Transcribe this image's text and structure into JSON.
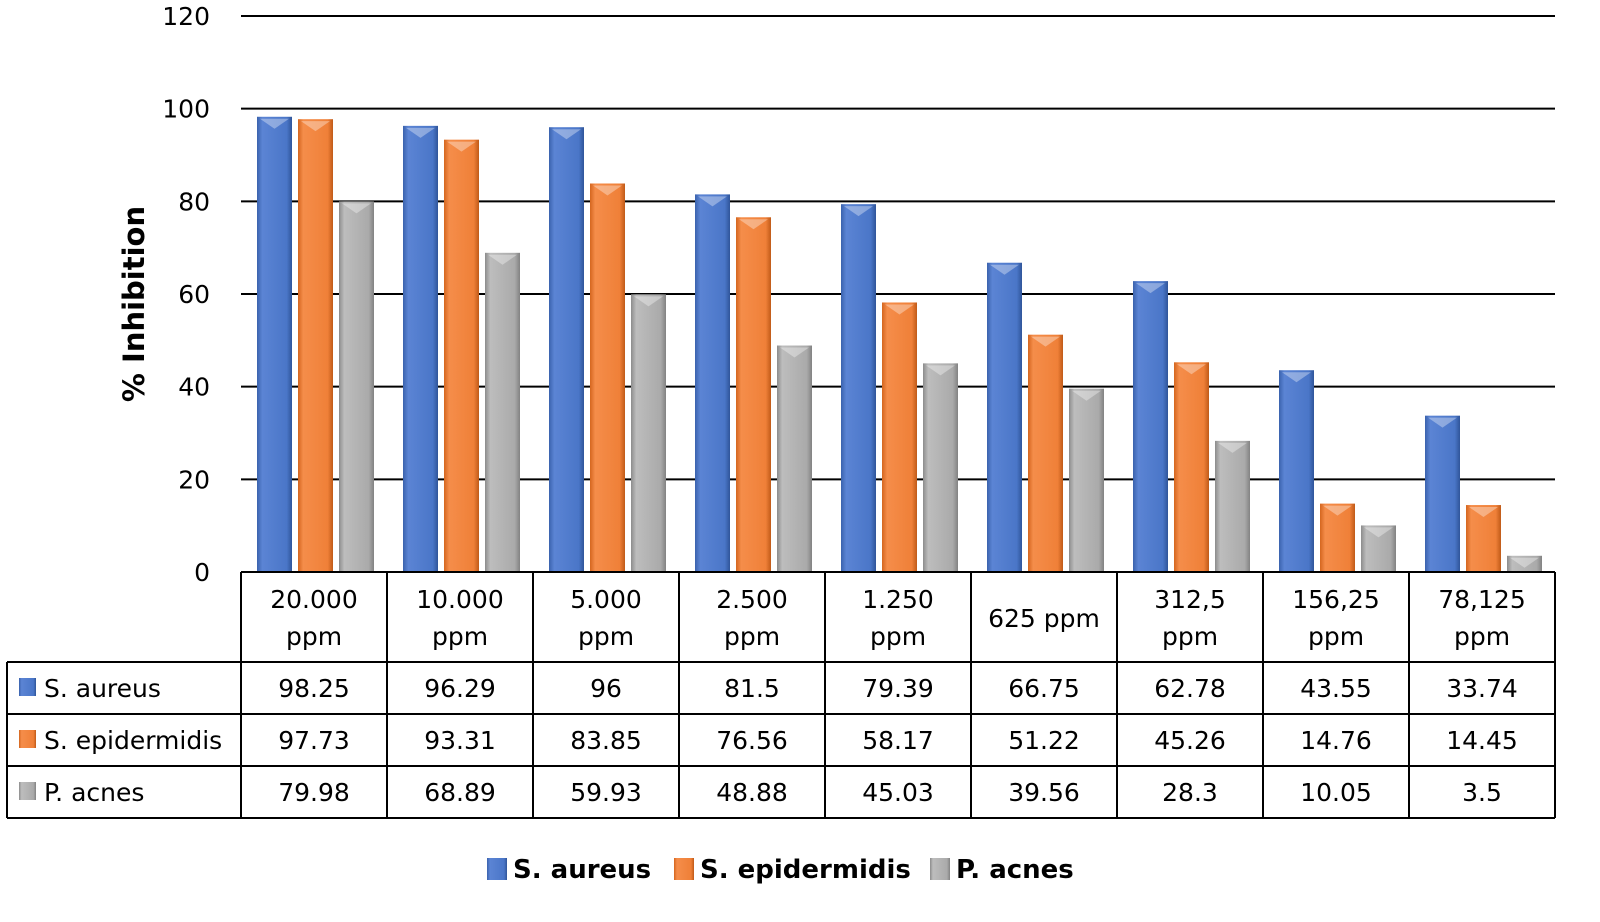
{
  "chart_data": {
    "type": "bar",
    "title": "",
    "xlabel": "",
    "ylabel": "% Inhibition",
    "ylim": [
      0,
      120
    ],
    "yticks": [
      0,
      20,
      40,
      60,
      80,
      100,
      120
    ],
    "grid": true,
    "legend_position": "bottom",
    "data_table": true,
    "categories": [
      [
        "20.000",
        "ppm"
      ],
      [
        "10.000",
        "ppm"
      ],
      [
        "5.000",
        "ppm"
      ],
      [
        "2.500",
        "ppm"
      ],
      [
        "1.250",
        "ppm"
      ],
      [
        "625 ppm"
      ],
      [
        "312,5",
        "ppm"
      ],
      [
        "156,25",
        "ppm"
      ],
      [
        "78,125",
        "ppm"
      ]
    ],
    "series": [
      {
        "name": "S. aureus",
        "color": "#4472c4",
        "values": [
          98.25,
          96.29,
          96,
          81.5,
          79.39,
          66.75,
          62.78,
          43.55,
          33.74
        ]
      },
      {
        "name": "S. epidermidis",
        "color": "#ed7d31",
        "values": [
          97.73,
          93.31,
          83.85,
          76.56,
          58.17,
          51.22,
          45.26,
          14.76,
          14.45
        ]
      },
      {
        "name": "P. acnes",
        "color": "#a5a5a5",
        "values": [
          79.98,
          68.89,
          59.93,
          48.88,
          45.03,
          39.56,
          28.3,
          10.05,
          3.5
        ]
      }
    ],
    "table_labels": [
      [
        "98.25",
        "96.29",
        "96",
        "81.5",
        "79.39",
        "66.75",
        "62.78",
        "43.55",
        "33.74"
      ],
      [
        "97.73",
        "93.31",
        "83.85",
        "76.56",
        "58.17",
        "51.22",
        "45.26",
        "14.76",
        "14.45"
      ],
      [
        "79.98",
        "68.89",
        "59.93",
        "48.88",
        "45.03",
        "39.56",
        "28.3",
        "10.05",
        "3.5"
      ]
    ]
  }
}
